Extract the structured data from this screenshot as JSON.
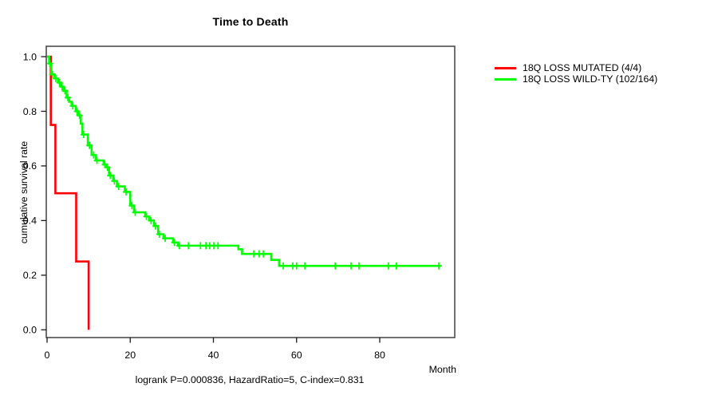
{
  "title": "Time to Death",
  "axes": {
    "ylabel": "cumulative survival rate",
    "xlabel": "Month",
    "yticks": [
      {
        "value": 0.0,
        "label": "0.0"
      },
      {
        "value": 0.2,
        "label": "0.2"
      },
      {
        "value": 0.4,
        "label": "0.4"
      },
      {
        "value": 0.6,
        "label": "0.6"
      },
      {
        "value": 0.8,
        "label": "0.8"
      },
      {
        "value": 1.0,
        "label": "1.0"
      }
    ],
    "xticks": [
      {
        "value": 0,
        "label": "0"
      },
      {
        "value": 20,
        "label": "20"
      },
      {
        "value": 40,
        "label": "40"
      },
      {
        "value": 60,
        "label": "60"
      },
      {
        "value": 80,
        "label": "80"
      }
    ]
  },
  "caption": "logrank P=0.000836, HazardRatio=5, C-index=0.831",
  "legend": [
    {
      "label": "18Q LOSS MUTATED (4/4)",
      "color": "#ff0000"
    },
    {
      "label": "18Q LOSS WILD-TY (102/164)",
      "color": "#00ff00"
    }
  ],
  "chart_data": {
    "type": "line",
    "subtype": "kaplan-meier-step",
    "title": "Time to Death",
    "xlabel": "Month",
    "ylabel": "cumulative survival rate",
    "xlim": [
      0,
      98
    ],
    "ylim": [
      0.0,
      1.04
    ],
    "grid": false,
    "legend_position": "right-outside",
    "censor_marker": "+",
    "annotation": "logrank P=0.000836, HazardRatio=5, C-index=0.831",
    "series": [
      {
        "name": "18Q LOSS MUTATED (4/4)",
        "color": "#ff0000",
        "n_events": "4/4",
        "steps": [
          [
            0,
            1.0
          ],
          [
            0.9,
            0.75
          ],
          [
            2.0,
            0.5
          ],
          [
            7.0,
            0.25
          ],
          [
            10.0,
            0.0
          ]
        ],
        "end": 10.0,
        "censors": []
      },
      {
        "name": "18Q LOSS WILD-TY (102/164)",
        "color": "#00ff00",
        "n_events": "102/164",
        "steps": [
          [
            0,
            1.0
          ],
          [
            0.5,
            0.975
          ],
          [
            1.0,
            0.935
          ],
          [
            1.8,
            0.92
          ],
          [
            2.7,
            0.905
          ],
          [
            3.4,
            0.89
          ],
          [
            4.0,
            0.875
          ],
          [
            4.7,
            0.85
          ],
          [
            5.3,
            0.835
          ],
          [
            5.9,
            0.82
          ],
          [
            6.9,
            0.8
          ],
          [
            7.5,
            0.785
          ],
          [
            8.1,
            0.755
          ],
          [
            8.5,
            0.715
          ],
          [
            9.8,
            0.675
          ],
          [
            10.7,
            0.64
          ],
          [
            11.7,
            0.62
          ],
          [
            13.6,
            0.605
          ],
          [
            14.2,
            0.595
          ],
          [
            14.9,
            0.565
          ],
          [
            15.9,
            0.545
          ],
          [
            16.8,
            0.525
          ],
          [
            18.7,
            0.505
          ],
          [
            20.0,
            0.455
          ],
          [
            20.9,
            0.43
          ],
          [
            23.6,
            0.415
          ],
          [
            24.6,
            0.4
          ],
          [
            25.7,
            0.38
          ],
          [
            26.7,
            0.35
          ],
          [
            28.0,
            0.335
          ],
          [
            30.3,
            0.32
          ],
          [
            31.5,
            0.308
          ],
          [
            46.0,
            0.295
          ],
          [
            46.9,
            0.278
          ],
          [
            53.9,
            0.256
          ],
          [
            55.8,
            0.234
          ]
        ],
        "end": 94.6,
        "censors": [
          0.7,
          1.3,
          2.1,
          3.0,
          3.6,
          4.3,
          5.0,
          6.2,
          7.2,
          7.8,
          8.8,
          10.2,
          11.2,
          12.0,
          13.9,
          14.5,
          15.2,
          16.2,
          17.2,
          19.0,
          20.4,
          21.2,
          23.9,
          25.0,
          26.1,
          27.0,
          28.4,
          30.6,
          31.8,
          34.0,
          36.9,
          38.2,
          39.1,
          40.1,
          41.1,
          49.7,
          51.0,
          52.0,
          56.8,
          59.1,
          60.0,
          62.0,
          69.3,
          73.1,
          75.0,
          82.1,
          84.0,
          94.2
        ]
      }
    ]
  }
}
